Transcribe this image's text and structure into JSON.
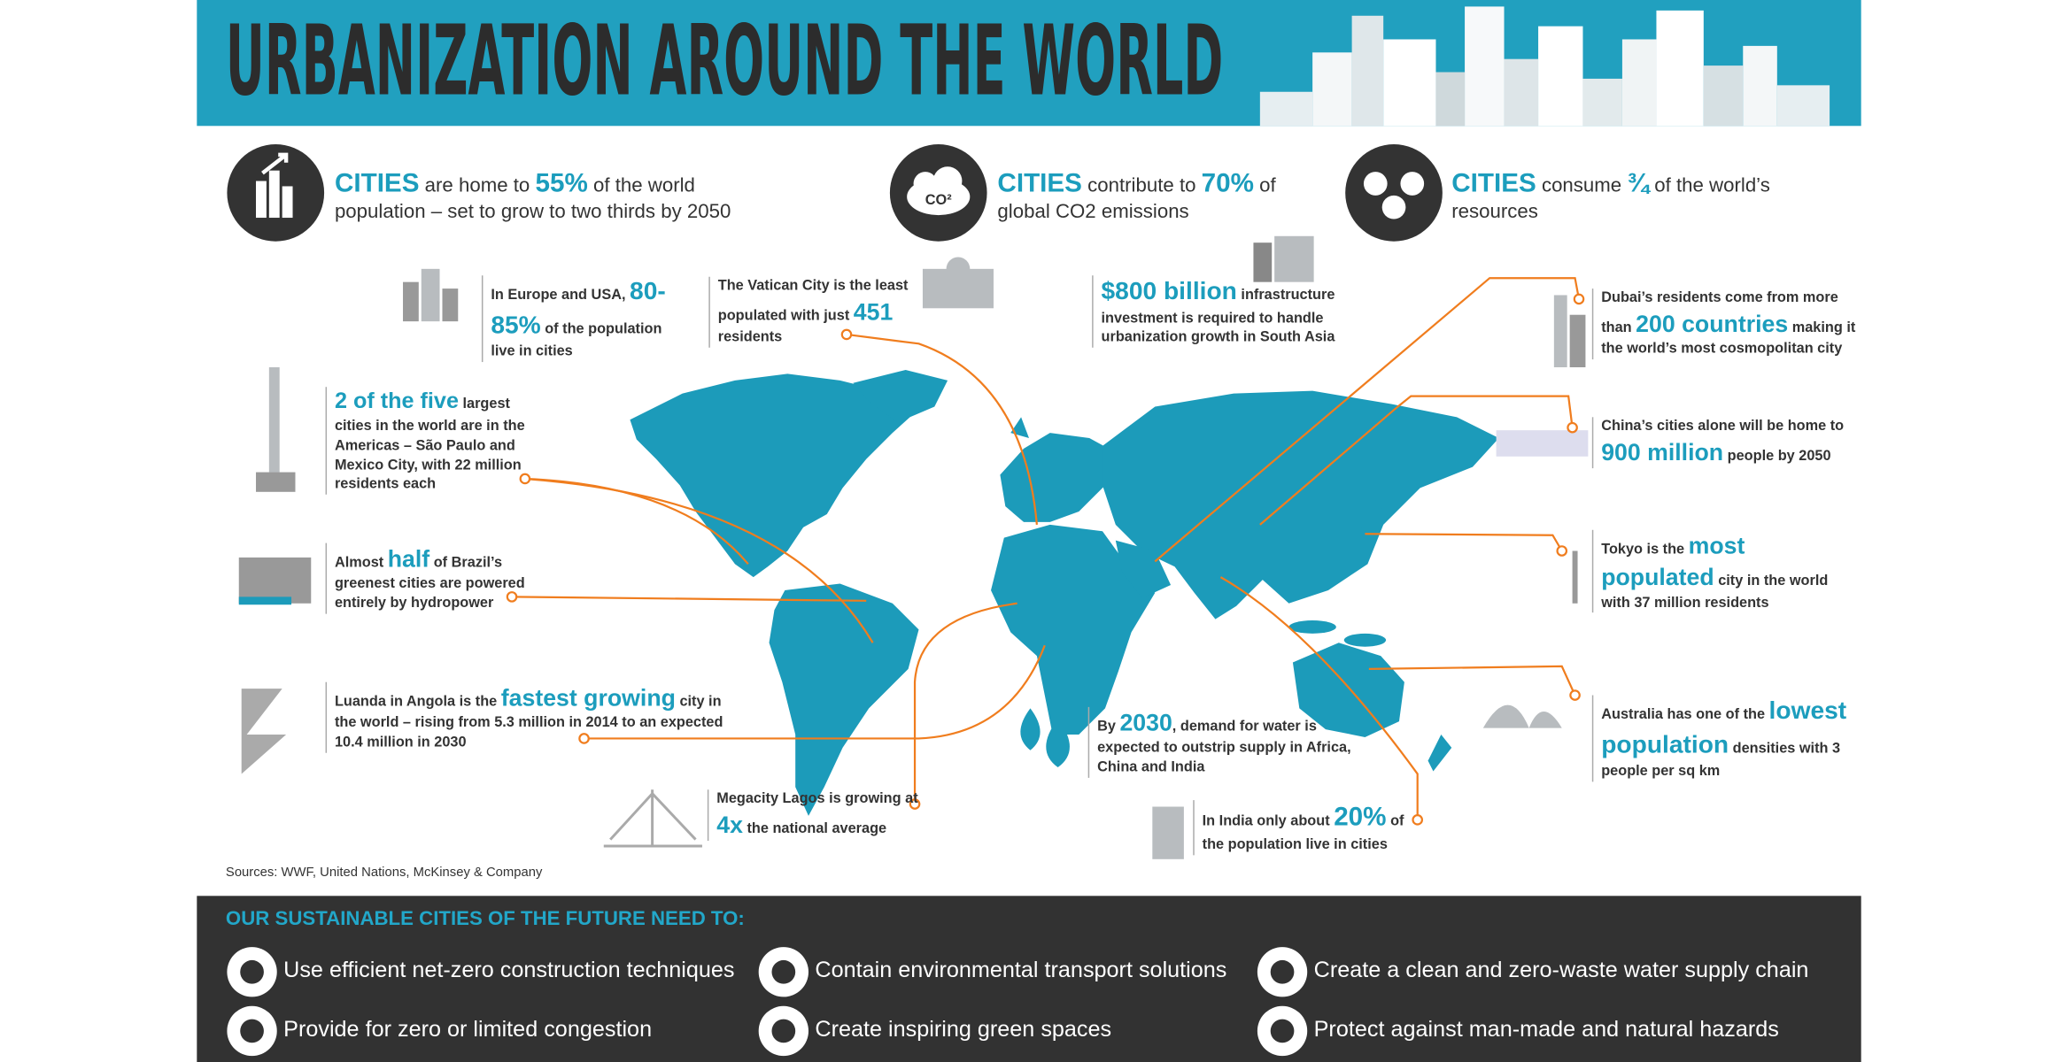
{
  "header": {
    "title": "URBANIZATION AROUND THE WORLD"
  },
  "headline_stats": [
    {
      "segments": [
        {
          "text": "CITIES",
          "em": true
        },
        {
          "text": " are home to ",
          "em": false
        },
        {
          "text": "55%",
          "em": true
        },
        {
          "text": " of the world population – set to grow to two thirds by 2050",
          "em": false
        }
      ]
    },
    {
      "icon_text": "CO²",
      "segments": [
        {
          "text": "CITIES",
          "em": true
        },
        {
          "text": " contribute to ",
          "em": false
        },
        {
          "text": "70%",
          "em": true
        },
        {
          "text": " of global CO2 emissions",
          "em": false
        }
      ]
    },
    {
      "segments": [
        {
          "text": "CITIES",
          "em": true
        },
        {
          "text": " consume ",
          "em": false
        },
        {
          "text": "¾",
          "em": true
        },
        {
          "text": " of the world’s resources",
          "em": false
        }
      ]
    }
  ],
  "callouts": [
    {
      "segments": [
        {
          "text": "In Europe and USA, ",
          "em": false
        },
        {
          "text": "80-85%",
          "em": true
        },
        {
          "text": " of the population live in cities",
          "em": false
        }
      ]
    },
    {
      "segments": [
        {
          "text": "The Vatican City is the least populated with just ",
          "em": false
        },
        {
          "text": "451",
          "em": true
        },
        {
          "text": " residents",
          "em": false
        }
      ]
    },
    {
      "segments": [
        {
          "text": "$800 billion",
          "em": true
        },
        {
          "text": " infrastructure investment is required to handle urbanization growth in South Asia",
          "em": false
        }
      ]
    },
    {
      "segments": [
        {
          "text": "Dubai’s residents come from more than ",
          "em": false
        },
        {
          "text": "200 countries",
          "em": true
        },
        {
          "text": " making it the world’s most cosmopolitan city",
          "em": false
        }
      ]
    },
    {
      "segments": [
        {
          "text": "2 of the five",
          "em": true
        },
        {
          "text": " largest cities in the world are in the Americas – São Paulo and Mexico City, with 22 million residents each",
          "em": false
        }
      ]
    },
    {
      "segments": [
        {
          "text": "China’s cities alone will be home to ",
          "em": false
        },
        {
          "text": "900 million",
          "em": true
        },
        {
          "text": " people by 2050",
          "em": false
        }
      ]
    },
    {
      "segments": [
        {
          "text": "Almost ",
          "em": false
        },
        {
          "text": "half",
          "em": true
        },
        {
          "text": " of Brazil’s greenest cities are powered entirely by hydropower",
          "em": false
        }
      ]
    },
    {
      "segments": [
        {
          "text": "Tokyo is the ",
          "em": false
        },
        {
          "text": "most populated",
          "em": true
        },
        {
          "text": " city in the world with 37 million residents",
          "em": false
        }
      ]
    },
    {
      "segments": [
        {
          "text": "Luanda in Angola is the ",
          "em": false
        },
        {
          "text": "fastest growing",
          "em": true
        },
        {
          "text": " city in the world – rising from 5.3 million in 2014 to an expected 10.4 million in 2030",
          "em": false
        }
      ]
    },
    {
      "segments": [
        {
          "text": "By ",
          "em": false
        },
        {
          "text": "2030",
          "em": true
        },
        {
          "text": ", demand for water is expected to outstrip supply in Africa, China and India",
          "em": false
        }
      ]
    },
    {
      "segments": [
        {
          "text": "Australia has one of the ",
          "em": false
        },
        {
          "text": "lowest population",
          "em": true
        },
        {
          "text": " densities with 3 people per sq km",
          "em": false
        }
      ]
    },
    {
      "segments": [
        {
          "text": "Megacity Lagos is growing at ",
          "em": false
        },
        {
          "text": "4x",
          "em": true
        },
        {
          "text": " the national average",
          "em": false
        }
      ]
    },
    {
      "segments": [
        {
          "text": "In India only about ",
          "em": false
        },
        {
          "text": "20%",
          "em": true
        },
        {
          "text": " of the population live in cities",
          "em": false
        }
      ]
    }
  ],
  "sources": "Sources: WWF, United Nations, McKinsey & Company",
  "footer": {
    "heading": "OUR SUSTAINABLE CITIES OF THE FUTURE NEED TO:",
    "items": [
      "Use efficient net-zero construction techniques",
      "Contain environmental transport solutions",
      "Create a clean and zero-waste water supply chain",
      "Provide for zero or limited congestion",
      "Create inspiring green spaces",
      "Protect against man-made and natural hazards"
    ]
  }
}
